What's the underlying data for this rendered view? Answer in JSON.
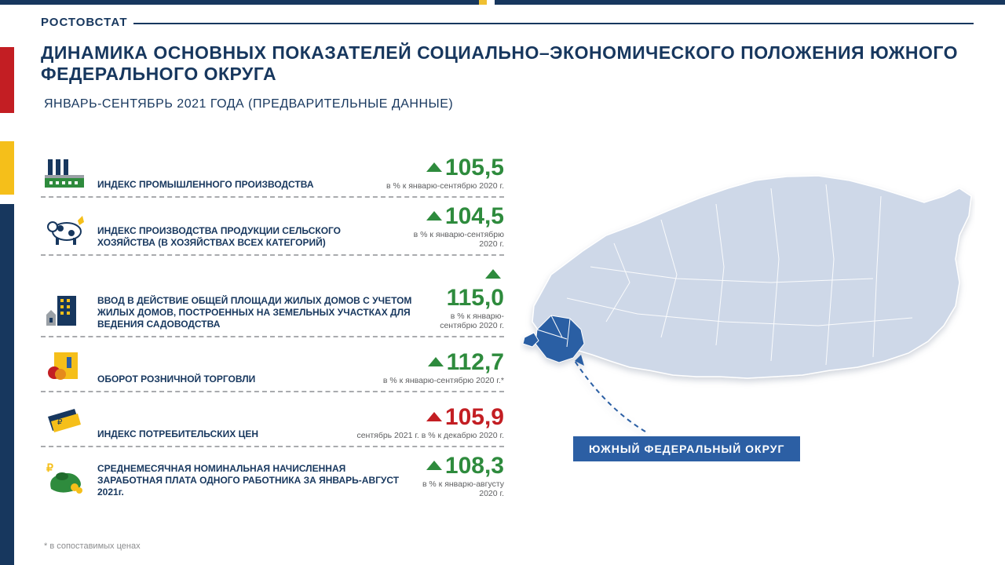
{
  "header": {
    "logo": "РОСТОВСТАТ",
    "title": "ДИНАМИКА ОСНОВНЫХ ПОКАЗАТЕЛЕЙ СОЦИАЛЬНО–ЭКОНОМИЧЕСКОГО ПОЛОЖЕНИЯ ЮЖНОГО ФЕДЕРАЛЬНОГО ОКРУГА",
    "subtitle": "ЯНВАРЬ-СЕНТЯБРЬ 2021 ГОДА (ПРЕДВАРИТЕЛЬНЫЕ ДАННЫЕ)"
  },
  "colors": {
    "primary": "#17375e",
    "green": "#2e8b3d",
    "red": "#c31e23",
    "map_fill": "#ced8e8",
    "map_stroke": "#ffffff",
    "highlight": "#2c5fa4"
  },
  "indicators": [
    {
      "icon": "factory",
      "label": "ИНДЕКС ПРОМЫШЛЕННОГО ПРОИЗВОДСТВА",
      "value": "105,5",
      "trend": "up",
      "color": "#2e8b3d",
      "note": "в % к январю-сентябрю 2020 г."
    },
    {
      "icon": "cow",
      "label": "ИНДЕКС ПРОИЗВОДСТВА ПРОДУКЦИИ СЕЛЬСКОГО ХОЗЯЙСТВА (В ХОЗЯЙСТВАХ ВСЕХ КАТЕГОРИЙ)",
      "value": "104,5",
      "trend": "up",
      "color": "#2e8b3d",
      "note": "в % к январю-сентябрю 2020 г."
    },
    {
      "icon": "building",
      "label": "ВВОД В ДЕЙСТВИЕ ОБЩЕЙ ПЛОЩАДИ ЖИЛЫХ ДОМОВ С УЧЕТОМ ЖИЛЫХ ДОМОВ, ПОСТРОЕННЫХ НА ЗЕМЕЛЬНЫХ УЧАСТКАХ ДЛЯ ВЕДЕНИЯ САДОВОДСТВА",
      "value": "115,0",
      "trend": "up",
      "color": "#2e8b3d",
      "note": "в % к январю-сентябрю 2020 г."
    },
    {
      "icon": "retail",
      "label": "ОБОРОТ РОЗНИЧНОЙ ТОРГОВЛИ",
      "value": "112,7",
      "trend": "up",
      "color": "#2e8b3d",
      "note": "в % к январю-сентябрю 2020 г.*"
    },
    {
      "icon": "cpi",
      "label": "ИНДЕКС ПОТРЕБИТЕЛЬСКИХ ЦЕН",
      "value": "105,9",
      "trend": "up",
      "color": "#c31e23",
      "note": "сентябрь 2021 г. в % к декабрю 2020 г."
    },
    {
      "icon": "salary",
      "label": "СРЕДНЕМЕСЯЧНАЯ НОМИНАЛЬНАЯ НАЧИСЛЕННАЯ ЗАРАБОТНАЯ ПЛАТА ОДНОГО РАБОТНИКА ЗА ЯНВАРЬ-АВГУСТ 2021г.",
      "value": "108,3",
      "trend": "up",
      "color": "#2e8b3d",
      "note": "в % к январю-августу 2020 г."
    }
  ],
  "footnote": "* в сопоставимых ценах",
  "map": {
    "label": "ЮЖНЫЙ ФЕДЕРАЛЬНЫЙ ОКРУГ"
  }
}
